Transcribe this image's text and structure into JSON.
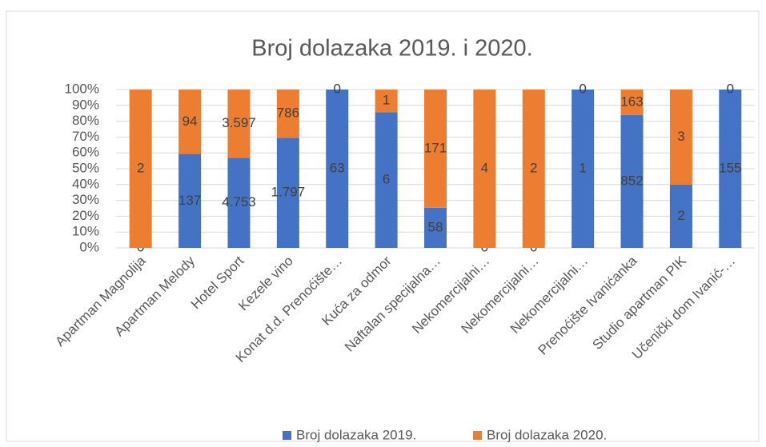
{
  "chart_data": {
    "type": "bar",
    "stacking": "percent",
    "title": "Broj dolazaka 2019. i 2020.",
    "categories": [
      "Apartman Magnolija",
      "Apartman Melody",
      "Hotel Sport",
      "Kezele vino",
      "Konat d.d. Prenoćište…",
      "Kuća za odmor",
      "Naftalan specijalna…",
      "Nekomercijalni…",
      "Nekomercijalni…",
      "Nekomercijalni…",
      "Prenoćište Ivanićanka",
      "Studio apartman PIK",
      "Učenički dom Ivanić-…"
    ],
    "series": [
      {
        "name": "Broj dolazaka 2019.",
        "color": "#4472c4",
        "values": [
          0,
          137,
          4753,
          1797,
          63,
          6,
          58,
          0,
          0,
          1,
          852,
          2,
          155
        ],
        "value_labels": [
          "0",
          "137",
          "4.753",
          "1.797",
          "63",
          "6",
          "58",
          "0",
          "0",
          "1",
          "852",
          "2",
          "155"
        ]
      },
      {
        "name": "Broj dolazaka 2020.",
        "color": "#ed7d31",
        "values": [
          2,
          94,
          3597,
          786,
          0,
          1,
          171,
          4,
          2,
          0,
          163,
          3,
          0
        ],
        "value_labels": [
          "2",
          "94",
          "3.597",
          "786",
          "0",
          "1",
          "171",
          "4",
          "2",
          "0",
          "163",
          "3",
          "0"
        ]
      }
    ],
    "ylim": [
      0,
      100
    ],
    "yticks": [
      {
        "value": 0,
        "label": "0%"
      },
      {
        "value": 10,
        "label": "10%"
      },
      {
        "value": 20,
        "label": "20%"
      },
      {
        "value": 30,
        "label": "30%"
      },
      {
        "value": 40,
        "label": "40%"
      },
      {
        "value": 50,
        "label": "50%"
      },
      {
        "value": 60,
        "label": "60%"
      },
      {
        "value": 70,
        "label": "70%"
      },
      {
        "value": 80,
        "label": "80%"
      },
      {
        "value": 90,
        "label": "90%"
      },
      {
        "value": 100,
        "label": "100%"
      }
    ],
    "grid": true,
    "legend": "bottom"
  }
}
